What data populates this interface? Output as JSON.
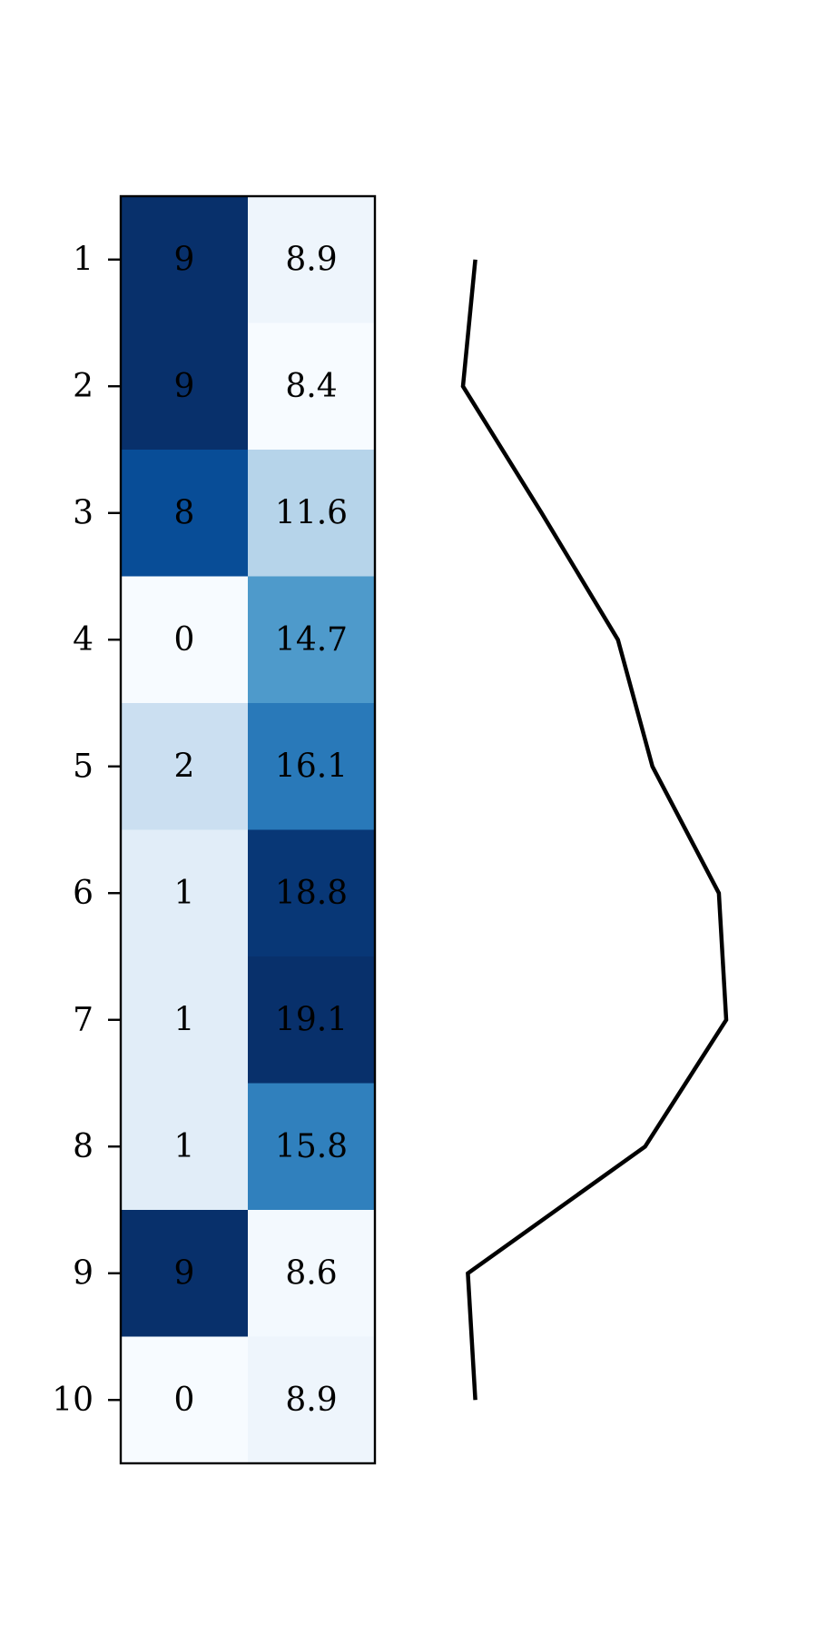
{
  "chart_data": [
    {
      "type": "heatmap",
      "rows": [
        "1",
        "2",
        "3",
        "4",
        "5",
        "6",
        "7",
        "8",
        "9",
        "10"
      ],
      "columns": 2,
      "values": [
        [
          9,
          8.9
        ],
        [
          9,
          8.4
        ],
        [
          8,
          11.6
        ],
        [
          0,
          14.7
        ],
        [
          2,
          16.1
        ],
        [
          1,
          18.8
        ],
        [
          1,
          19.1
        ],
        [
          1,
          15.8
        ],
        [
          9,
          8.6
        ],
        [
          0,
          8.9
        ]
      ],
      "cell_labels": [
        [
          "9",
          "8.9"
        ],
        [
          "9",
          "8.4"
        ],
        [
          "8",
          "11.6"
        ],
        [
          "0",
          "14.7"
        ],
        [
          "2",
          "16.1"
        ],
        [
          "1",
          "18.8"
        ],
        [
          "1",
          "19.1"
        ],
        [
          "1",
          "15.8"
        ],
        [
          "9",
          "8.6"
        ],
        [
          "0",
          "8.9"
        ]
      ],
      "colormap": "Blues",
      "column_ranges": [
        [
          0,
          9
        ],
        [
          8.4,
          19.1
        ]
      ]
    },
    {
      "type": "line",
      "orientation": "vertical",
      "y": [
        1,
        2,
        3,
        4,
        5,
        6,
        7,
        8,
        9,
        10
      ],
      "values": [
        8.9,
        8.4,
        11.6,
        14.7,
        16.1,
        18.8,
        19.1,
        15.8,
        8.6,
        8.9
      ],
      "color": "#000000",
      "axes_visible": false
    }
  ]
}
